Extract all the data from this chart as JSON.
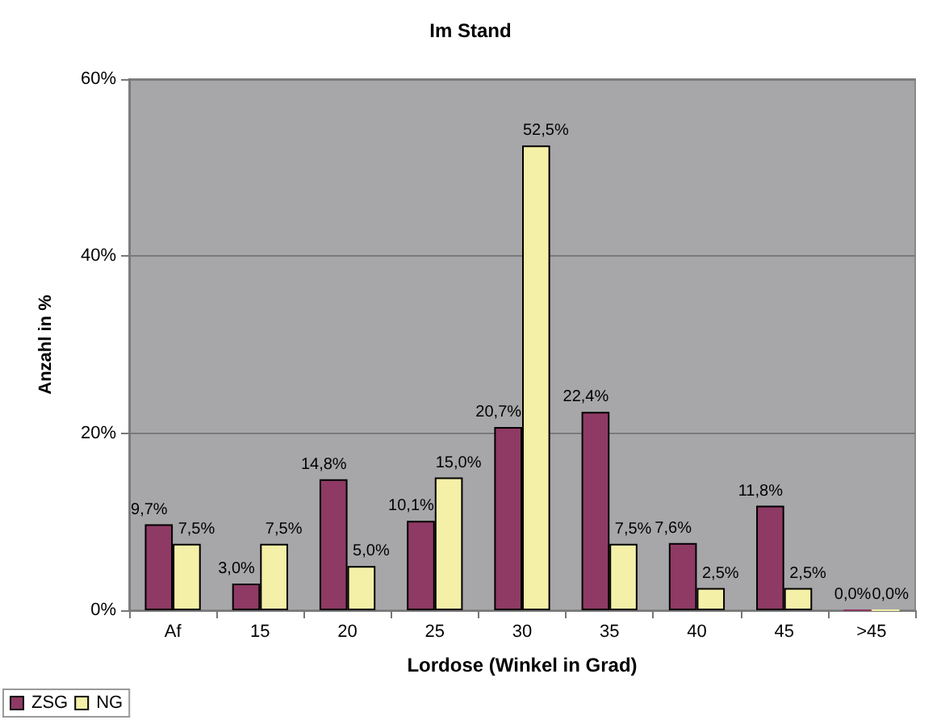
{
  "chart_data": {
    "type": "bar",
    "title": "Im Stand",
    "xlabel": "Lordose (Winkel in Grad)",
    "ylabel": "Anzahl in %",
    "categories": [
      "Af",
      "15",
      "20",
      "25",
      "30",
      "35",
      "40",
      "45",
      ">45"
    ],
    "series": [
      {
        "name": "ZSG",
        "color": "#8e3a64",
        "values": [
          9.7,
          3.0,
          14.8,
          10.1,
          20.7,
          22.4,
          7.6,
          11.8,
          0.0
        ],
        "value_labels": [
          "9,7%",
          "3,0%",
          "14,8%",
          "10,1%",
          "20,7%",
          "22,4%",
          "7,6%",
          "11,8%",
          "0,0%"
        ]
      },
      {
        "name": "NG",
        "color": "#f5f0a8",
        "values": [
          7.5,
          7.5,
          5.0,
          15.0,
          52.5,
          7.5,
          2.5,
          2.5,
          0.0
        ],
        "value_labels": [
          "7,5%",
          "7,5%",
          "5,0%",
          "15,0%",
          "52,5%",
          "7,5%",
          "2,5%",
          "2,5%",
          "0,0%"
        ]
      }
    ],
    "ylim": [
      0,
      60
    ],
    "yticks": [
      {
        "value": 0,
        "label": "0%"
      },
      {
        "value": 20,
        "label": "20%"
      },
      {
        "value": 40,
        "label": "40%"
      },
      {
        "value": 60,
        "label": "60%"
      }
    ],
    "grid": "y",
    "legend": "bottom left"
  }
}
